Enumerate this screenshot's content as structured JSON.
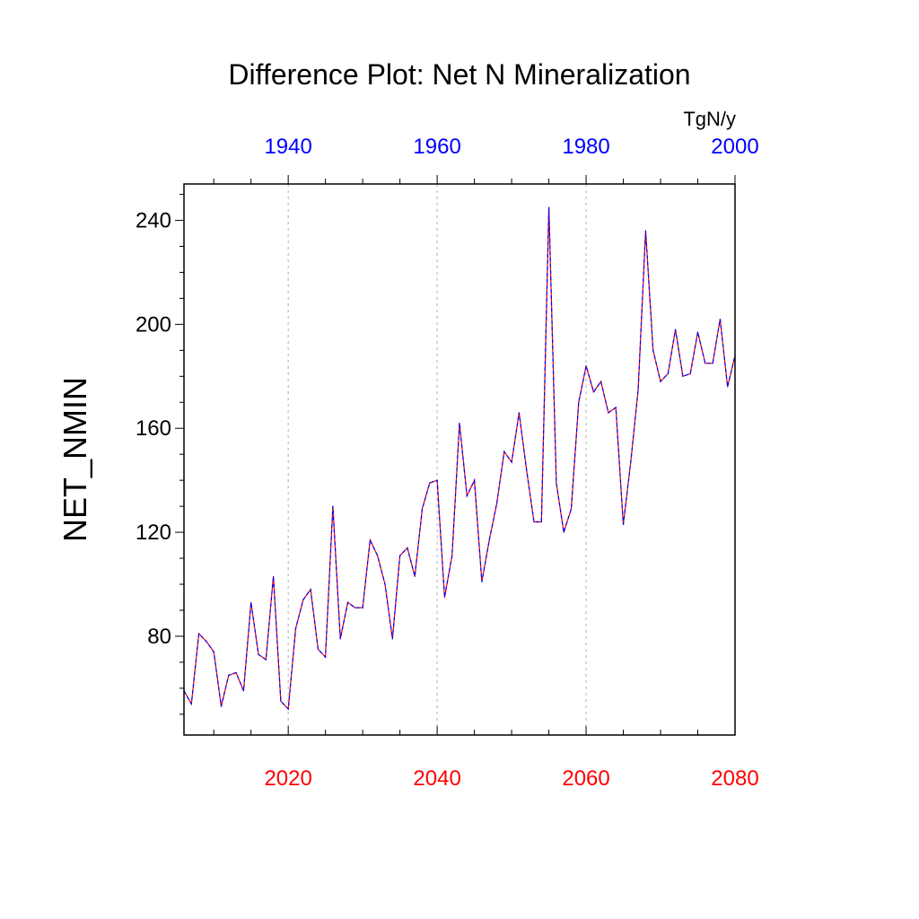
{
  "chart_data": {
    "type": "line",
    "title": "Difference Plot: Net N Mineralization",
    "ylabel": "NET_NMIN",
    "units": "TgN/y",
    "xlim": [
      2006,
      2080
    ],
    "ylim": [
      42,
      254
    ],
    "top_axis_offset": -80,
    "bottom_ticks": [
      2020,
      2040,
      2060,
      2080
    ],
    "top_ticks": [
      1940,
      1960,
      1980,
      2000
    ],
    "yticks": [
      80,
      120,
      160,
      200,
      240
    ],
    "grid_x": [
      2020,
      2040,
      2060
    ],
    "colors": {
      "bottom_ticks": "#ff0000",
      "top_ticks": "#0000ff",
      "line_a": "#ff0000",
      "line_b": "#0000ff"
    },
    "series": [
      {
        "name": "NET_NMIN",
        "x": [
          2006,
          2007,
          2008,
          2009,
          2010,
          2011,
          2012,
          2013,
          2014,
          2015,
          2016,
          2017,
          2018,
          2019,
          2020,
          2021,
          2022,
          2023,
          2024,
          2025,
          2026,
          2027,
          2028,
          2029,
          2030,
          2031,
          2032,
          2033,
          2034,
          2035,
          2036,
          2037,
          2038,
          2039,
          2040,
          2041,
          2042,
          2043,
          2044,
          2045,
          2046,
          2047,
          2048,
          2049,
          2050,
          2051,
          2052,
          2053,
          2054,
          2055,
          2056,
          2057,
          2058,
          2059,
          2060,
          2061,
          2062,
          2063,
          2064,
          2065,
          2066,
          2067,
          2068,
          2069,
          2070,
          2071,
          2072,
          2073,
          2074,
          2075,
          2076,
          2077,
          2078,
          2079,
          2080
        ],
        "values": [
          59,
          54,
          81,
          78,
          74,
          53,
          65,
          66,
          59,
          93,
          73,
          71,
          103,
          55,
          52,
          83,
          94,
          98,
          75,
          72,
          130,
          79,
          93,
          91,
          91,
          117,
          111,
          100,
          79,
          111,
          114,
          103,
          129,
          139,
          140,
          95,
          111,
          162,
          134,
          140,
          101,
          117,
          131,
          151,
          147,
          166,
          144,
          124,
          124,
          245,
          139,
          120,
          129,
          170,
          184,
          174,
          178,
          166,
          168,
          123,
          147,
          175,
          236,
          190,
          178,
          181,
          198,
          180,
          181,
          197,
          185,
          185,
          202,
          176,
          188
        ]
      }
    ]
  }
}
